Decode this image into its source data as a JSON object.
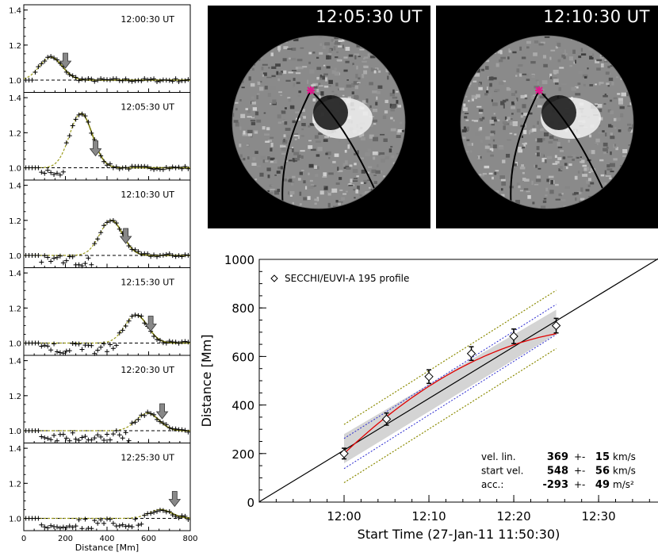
{
  "left_panels": [
    {
      "label": "12:00:30 UT",
      "front_mm": 200
    },
    {
      "label": "12:05:30 UT",
      "front_mm": 345
    },
    {
      "label": "12:10:30 UT",
      "front_mm": 490
    },
    {
      "label": "12:15:30 UT",
      "front_mm": 610
    },
    {
      "label": "12:20:30 UT",
      "front_mm": 665
    },
    {
      "label": "12:25:30 UT",
      "front_mm": 725
    }
  ],
  "left_axes": {
    "y_ticks": [
      "1.0",
      "1.2",
      "1.4"
    ],
    "x_ticks": [
      "0",
      "200",
      "400",
      "600",
      "800"
    ],
    "xlabel": "Distance [Mm]"
  },
  "images": [
    {
      "label": "12:05:30 UT"
    },
    {
      "label": "12:10:30 UT"
    }
  ],
  "chart_data": {
    "type": "scatter",
    "xlabel": "Start Time (27-Jan-11 11:50:30)",
    "ylabel": "Distance [Mm]",
    "x_tick_labels": [
      "12:00",
      "12:10",
      "12:20",
      "12:30"
    ],
    "y_tick_labels": [
      "0",
      "200",
      "400",
      "600",
      "800",
      "1000"
    ],
    "ylim": [
      0,
      1000
    ],
    "legend": "SECCHI/EUVI-A 195 profile",
    "series": [
      {
        "name": "SECCHI/EUVI-A 195 profile",
        "x_min": [
          10.0,
          15.0,
          20.0,
          25.0,
          30.0,
          35.0
        ],
        "y": [
          200,
          342,
          517,
          612,
          683,
          727
        ],
        "err": [
          22,
          25,
          28,
          28,
          30,
          30
        ]
      }
    ],
    "fit": [
      {
        "key": "vel. lin.",
        "value": "369",
        "pm": "+-",
        "err": "15",
        "unit": "km/s"
      },
      {
        "key": "start vel.",
        "value": "548",
        "pm": "+-",
        "err": "56",
        "unit": "km/s"
      },
      {
        "key": "acc.:",
        "value": "-293",
        "pm": "+-",
        "err": "49",
        "unit": "m/s²"
      }
    ]
  }
}
